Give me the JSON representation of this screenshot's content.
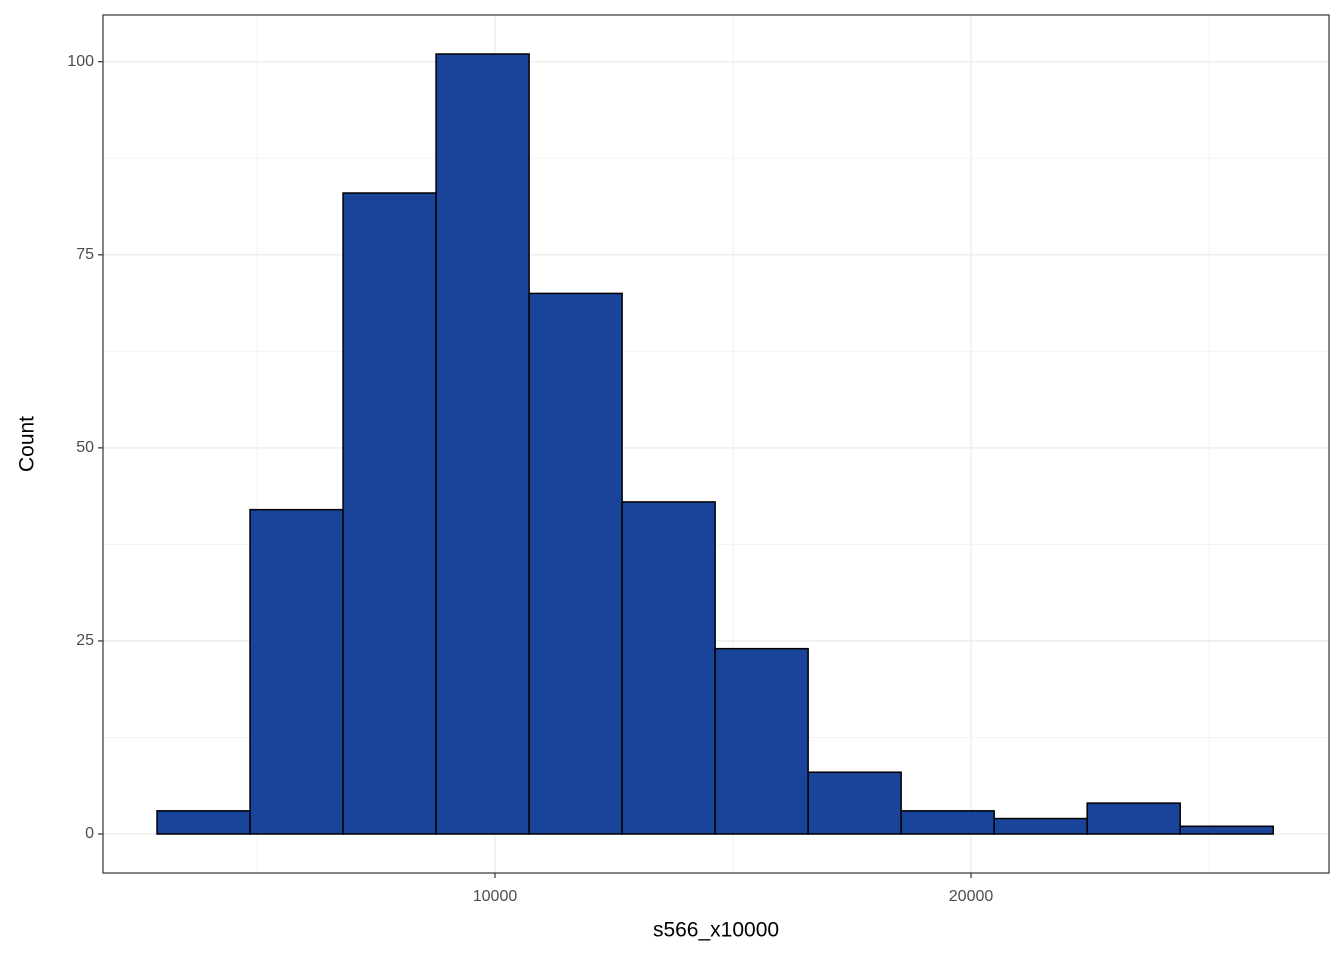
{
  "chart_data": {
    "type": "histogram",
    "x_label": "s566_x10000",
    "y_label": "Count",
    "bins": [
      2900,
      4854,
      6808,
      8762,
      10716,
      12670,
      14624,
      16578,
      18532,
      20486,
      22440,
      24394,
      26348
    ],
    "values": [
      3,
      42,
      83,
      101,
      70,
      43,
      24,
      8,
      3,
      2,
      4,
      1
    ],
    "color": "#19449a",
    "edgecolor": "#000000",
    "xlim": [
      1765,
      27520
    ],
    "ylim": [
      -5.05,
      106.05
    ],
    "xticks": [
      10000,
      20000
    ],
    "yticks": [
      0,
      25,
      50,
      75,
      100
    ],
    "grid": true,
    "minor_grid": true
  }
}
